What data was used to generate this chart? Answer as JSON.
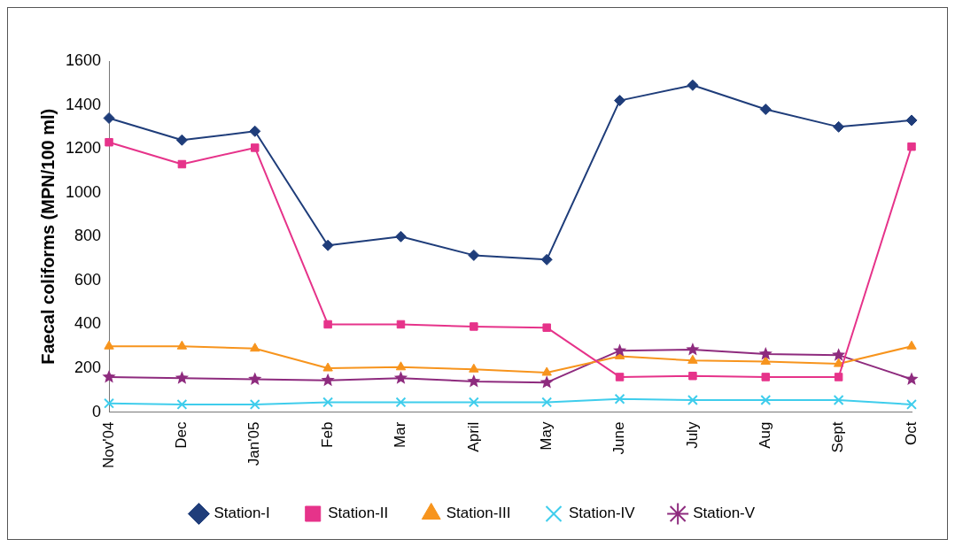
{
  "chart_data": {
    "type": "line",
    "ylabel": "Faecal coliforms (MPN/100 ml)",
    "categories": [
      "Nov'04",
      "Dec",
      "Jan'05",
      "Feb",
      "Mar",
      "April",
      "May",
      "June",
      "July",
      "Aug",
      "Sept",
      "Oct"
    ],
    "series": [
      {
        "name": "Station-I",
        "color": "#1f3d7a",
        "marker": "diamond",
        "values": [
          1340,
          1240,
          1280,
          760,
          800,
          715,
          695,
          1420,
          1490,
          1380,
          1300,
          1330
        ]
      },
      {
        "name": "Station-II",
        "color": "#e6338a",
        "marker": "square",
        "values": [
          1230,
          1130,
          1205,
          400,
          400,
          390,
          385,
          160,
          165,
          160,
          160,
          1210
        ]
      },
      {
        "name": "Station-III",
        "color": "#f7941d",
        "marker": "triangle",
        "values": [
          300,
          300,
          290,
          200,
          205,
          195,
          180,
          255,
          235,
          230,
          220,
          300
        ]
      },
      {
        "name": "Station-IV",
        "color": "#3fcdec",
        "marker": "cross",
        "values": [
          40,
          35,
          35,
          45,
          45,
          45,
          45,
          60,
          55,
          55,
          55,
          35
        ]
      },
      {
        "name": "Station-V",
        "color": "#8e2b7e",
        "marker": "star",
        "values": [
          160,
          155,
          150,
          145,
          155,
          140,
          135,
          280,
          285,
          265,
          260,
          150
        ]
      }
    ],
    "ylim": [
      0,
      1600
    ],
    "yticks": [
      0,
      200,
      400,
      600,
      800,
      1000,
      1200,
      1400,
      1600
    ],
    "grid": false,
    "legend": "bottom"
  }
}
